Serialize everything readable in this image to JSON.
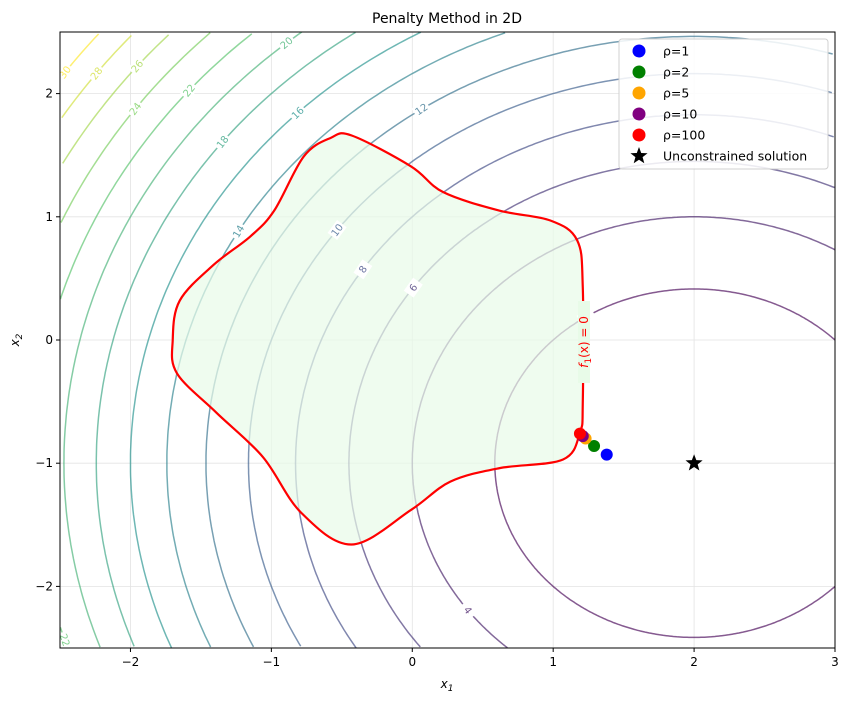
{
  "chart_data": {
    "type": "contour",
    "title": "Penalty Method in 2D",
    "xlabel": "x",
    "xlabel_sub": "1",
    "ylabel": "x",
    "ylabel_sub": "2",
    "xlim": [
      -2.5,
      3
    ],
    "ylim": [
      -2.5,
      2.5
    ],
    "xticks": [
      -2,
      -1,
      0,
      1,
      2,
      3
    ],
    "yticks": [
      -2,
      -1,
      0,
      1,
      2
    ],
    "xtick_labels": [
      "−2",
      "−1",
      "0",
      "1",
      "2",
      "3"
    ],
    "ytick_labels": [
      "−2",
      "−1",
      "0",
      "1",
      "2"
    ],
    "grid": true,
    "objective": {
      "center": [
        2,
        -1
      ],
      "levels": [
        2,
        4,
        6,
        8,
        10,
        12,
        14,
        16,
        18,
        20,
        22,
        24,
        26,
        28,
        30
      ],
      "colormap": "viridis"
    },
    "constraint": {
      "label": "f1(x) = 0",
      "label_main": "f",
      "label_sub": "1",
      "label_rest": "(x) = 0",
      "color": "#ff0000",
      "fill": "#e8fbe8",
      "boundary": [
        [
          -0.43,
          1.66
        ],
        [
          -0.01,
          1.41
        ],
        [
          0.22,
          1.2
        ],
        [
          0.62,
          1.05
        ],
        [
          0.98,
          0.97
        ],
        [
          1.17,
          0.81
        ],
        [
          1.21,
          0.43
        ],
        [
          1.21,
          -0.51
        ],
        [
          1.19,
          -0.75
        ],
        [
          1.07,
          -0.97
        ],
        [
          0.62,
          -1.04
        ],
        [
          0.27,
          -1.15
        ],
        [
          -0.01,
          -1.38
        ],
        [
          -0.43,
          -1.66
        ],
        [
          -0.79,
          -1.4
        ],
        [
          -1.06,
          -0.95
        ],
        [
          -1.39,
          -0.59
        ],
        [
          -1.67,
          -0.27
        ],
        [
          -1.7,
          0.0
        ],
        [
          -1.65,
          0.32
        ],
        [
          -1.41,
          0.61
        ],
        [
          -1.15,
          0.84
        ],
        [
          -0.98,
          1.05
        ],
        [
          -0.77,
          1.49
        ],
        [
          -0.58,
          1.64
        ]
      ]
    },
    "series": [
      {
        "name": "ρ=1",
        "x": 1.38,
        "y": -0.93,
        "color": "#0000ff",
        "marker": "circle"
      },
      {
        "name": "ρ=2",
        "x": 1.29,
        "y": -0.86,
        "color": "#008000",
        "marker": "circle"
      },
      {
        "name": "ρ=5",
        "x": 1.23,
        "y": -0.8,
        "color": "#ffa500",
        "marker": "circle"
      },
      {
        "name": "ρ=10",
        "x": 1.21,
        "y": -0.78,
        "color": "#800080",
        "marker": "circle"
      },
      {
        "name": "ρ=100",
        "x": 1.19,
        "y": -0.76,
        "color": "#ff0000",
        "marker": "circle"
      },
      {
        "name": "Unconstrained solution",
        "x": 2,
        "y": -1,
        "color": "#000000",
        "marker": "star"
      }
    ],
    "legend_position": "top-right"
  }
}
